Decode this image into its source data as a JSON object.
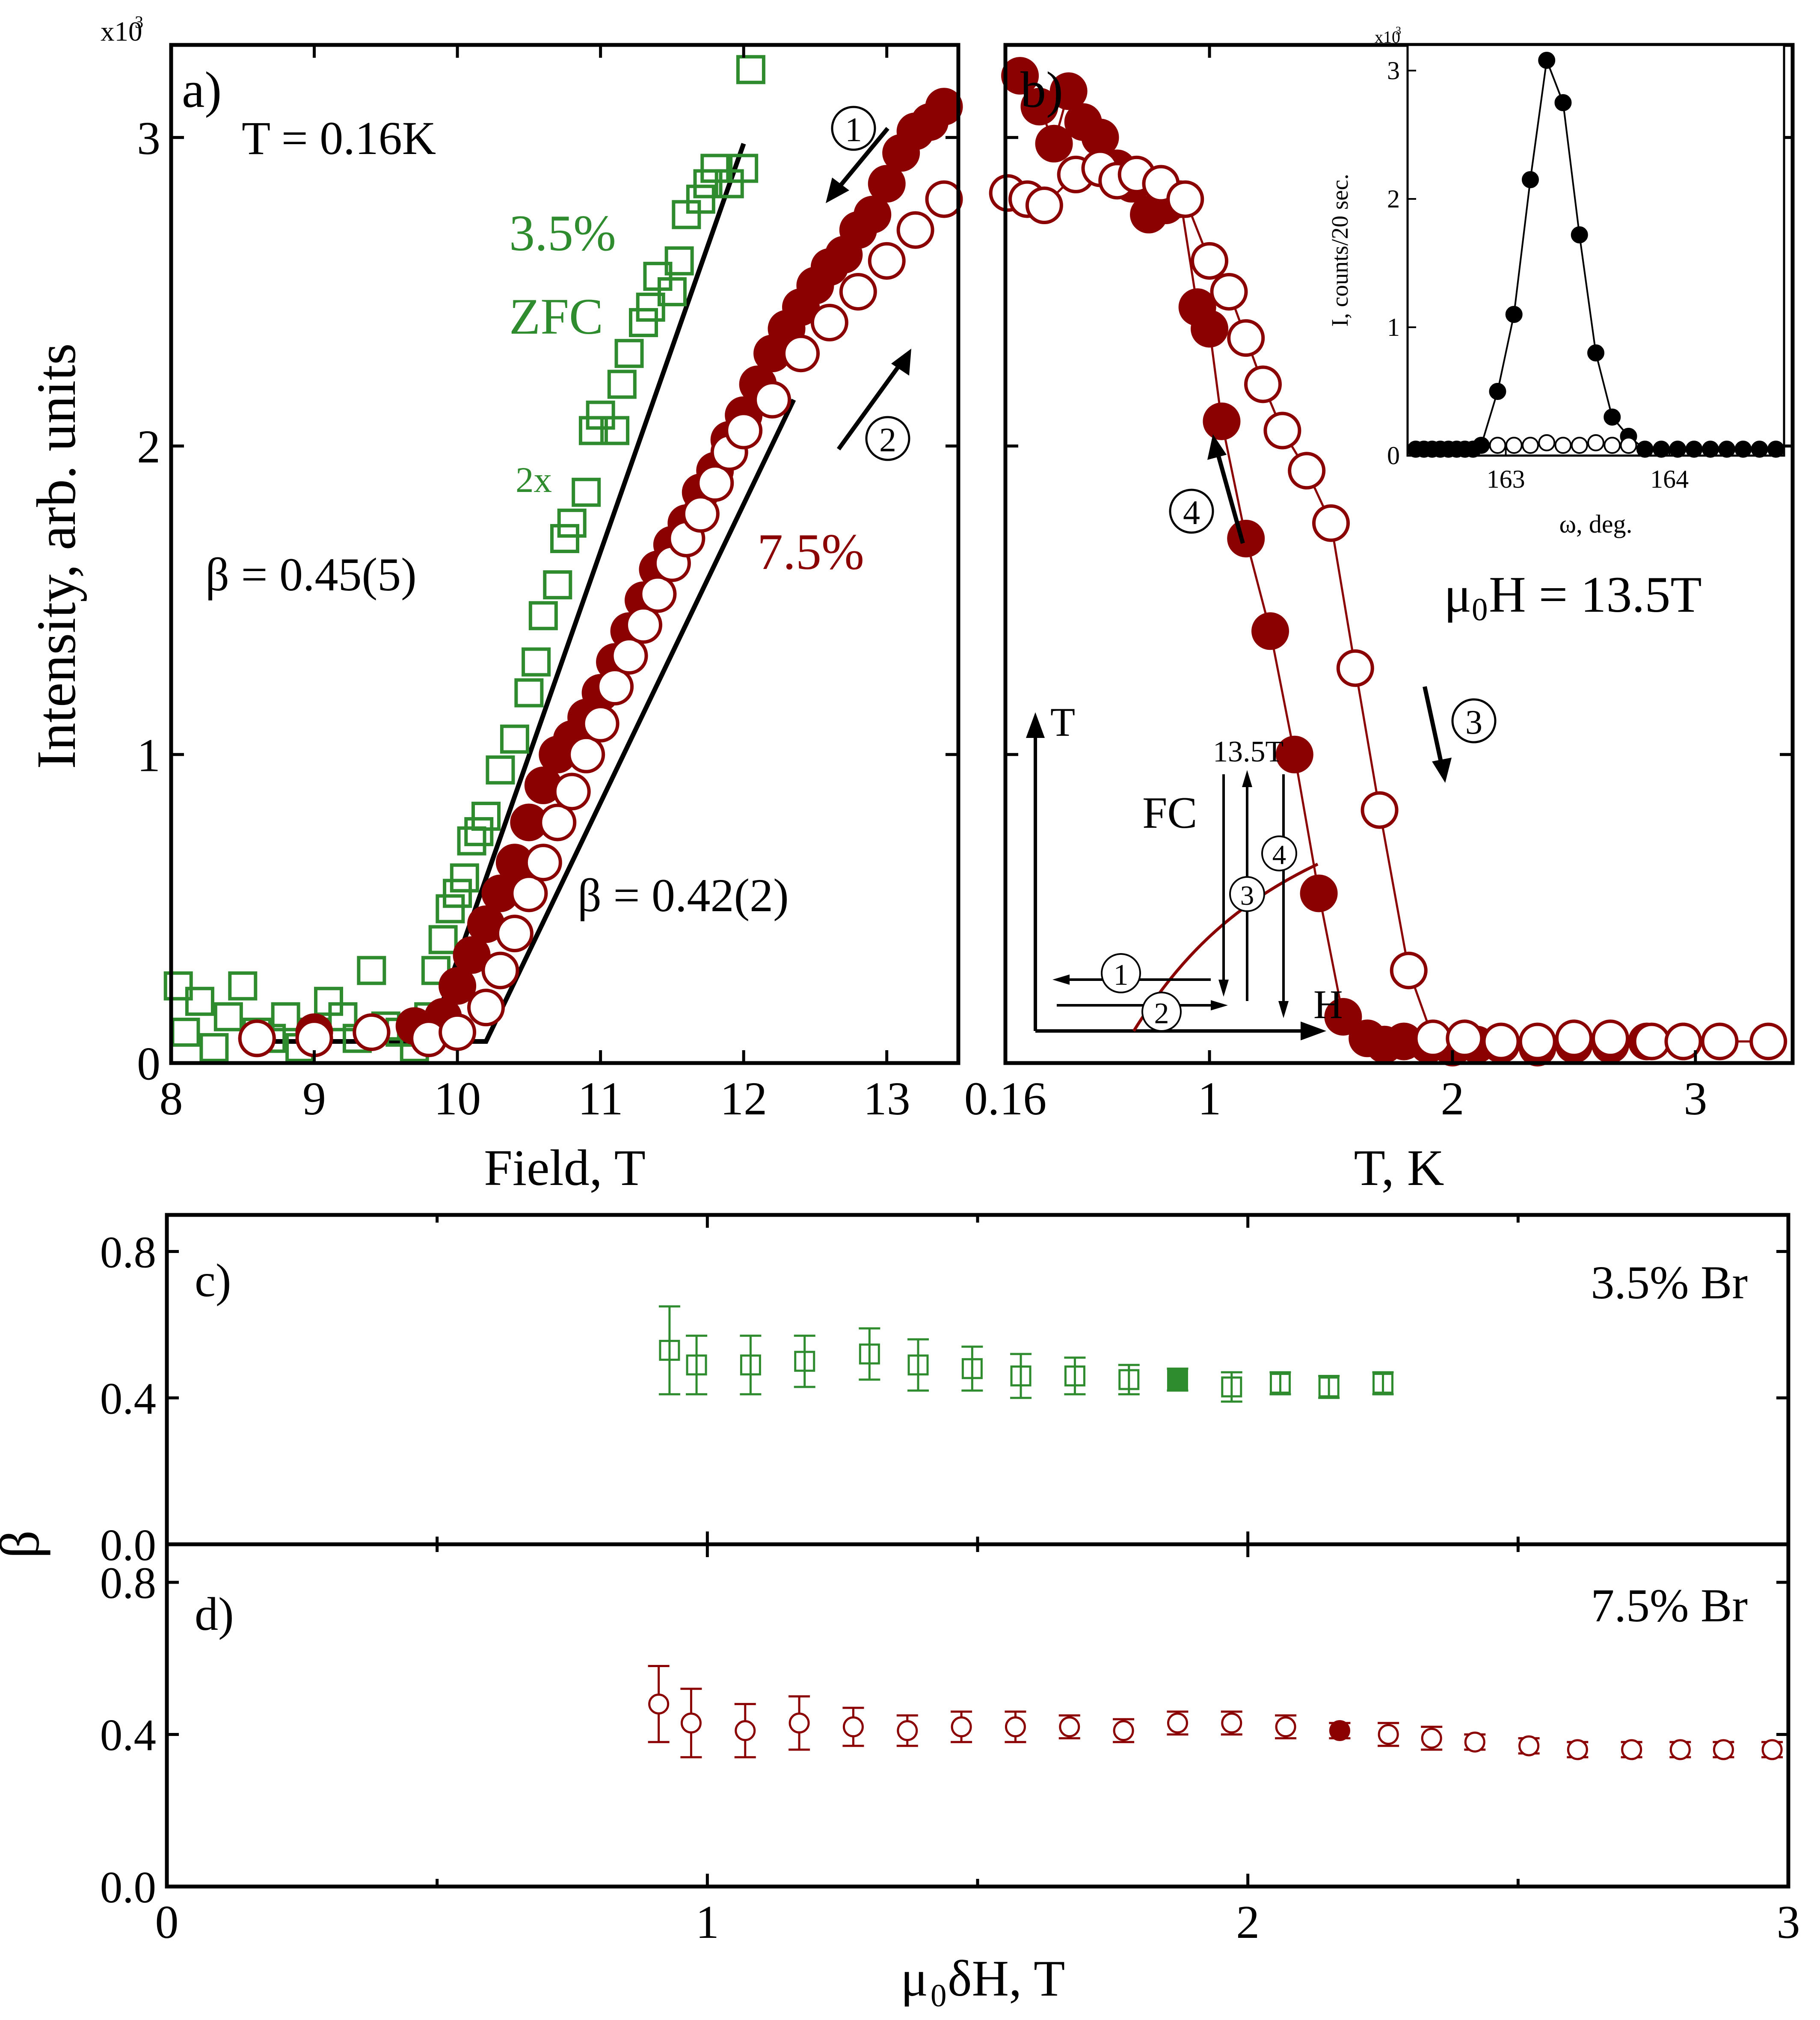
{
  "colors": {
    "green": "#2e8b2e",
    "red": "#8b0000",
    "black": "#000000"
  },
  "chart_data": [
    {
      "panel": "a",
      "type": "scatter",
      "panel_label": "a)",
      "xlabel": "Field, T",
      "ylabel": "Intensity, arb. units",
      "y_multiplier": "x10",
      "y_multiplier_exp": "3",
      "xlim": [
        8,
        13.5
      ],
      "ylim": [
        0,
        3.3
      ],
      "xticks": [
        "8",
        "9",
        "10",
        "11",
        "12",
        "13"
      ],
      "yticks": [
        "0",
        "1",
        "2",
        "3"
      ],
      "annotations": {
        "temperature": "T = 0.16K",
        "green_conc": "3.5%",
        "green_zfc": "ZFC",
        "scale_note": "2x",
        "beta_green": "β = 0.45(5)",
        "red_conc": "7.5%",
        "beta_red": "β = 0.42(2)",
        "arrow_down": "1",
        "arrow_up": "2"
      },
      "series": [
        {
          "name": "3.5% ZFC (2x)",
          "marker": "open-square",
          "color": "green",
          "x": [
            8.05,
            8.1,
            8.2,
            8.3,
            8.4,
            8.5,
            8.6,
            8.7,
            8.8,
            8.9,
            9.0,
            9.1,
            9.2,
            9.3,
            9.4,
            9.5,
            9.6,
            9.7,
            9.8,
            9.85,
            9.9,
            9.95,
            10.0,
            10.05,
            10.1,
            10.15,
            10.2,
            10.3,
            10.4,
            10.5,
            10.55,
            10.6,
            10.7,
            10.75,
            10.8,
            10.9,
            10.95,
            11.0,
            11.1,
            11.15,
            11.2,
            11.3,
            11.35,
            11.4,
            11.5,
            11.55,
            11.6,
            11.7,
            11.75,
            11.8,
            11.9,
            12.0,
            12.05
          ],
          "y": [
            0.25,
            0.1,
            0.2,
            0.05,
            0.15,
            0.25,
            0.1,
            0.08,
            0.15,
            0.05,
            0.1,
            0.2,
            0.15,
            0.08,
            0.3,
            0.12,
            0.1,
            0.05,
            0.15,
            0.3,
            0.4,
            0.5,
            0.55,
            0.6,
            0.72,
            0.75,
            0.8,
            0.95,
            1.05,
            1.2,
            1.3,
            1.45,
            1.55,
            1.7,
            1.75,
            1.85,
            2.05,
            2.1,
            2.05,
            2.2,
            2.3,
            2.4,
            2.45,
            2.55,
            2.5,
            2.6,
            2.75,
            2.8,
            2.85,
            2.9,
            2.85,
            2.9,
            3.22
          ]
        },
        {
          "name": "7.5% filled",
          "marker": "filled-circle",
          "color": "red",
          "x": [
            8.6,
            9.0,
            9.4,
            9.7,
            9.9,
            10.0,
            10.1,
            10.2,
            10.3,
            10.4,
            10.5,
            10.6,
            10.7,
            10.8,
            10.9,
            11.0,
            11.1,
            11.2,
            11.3,
            11.4,
            11.5,
            11.6,
            11.7,
            11.8,
            11.9,
            12.0,
            12.1,
            12.2,
            12.3,
            12.4,
            12.5,
            12.6,
            12.7,
            12.8,
            12.9,
            13.0,
            13.1,
            13.2,
            13.3,
            13.4
          ],
          "y": [
            0.08,
            0.1,
            0.1,
            0.12,
            0.15,
            0.25,
            0.35,
            0.45,
            0.55,
            0.65,
            0.78,
            0.9,
            1.0,
            1.05,
            1.12,
            1.2,
            1.3,
            1.4,
            1.5,
            1.6,
            1.68,
            1.75,
            1.85,
            1.92,
            2.02,
            2.1,
            2.2,
            2.3,
            2.38,
            2.45,
            2.52,
            2.58,
            2.62,
            2.7,
            2.75,
            2.85,
            2.95,
            3.02,
            3.05,
            3.1
          ]
        },
        {
          "name": "7.5% open",
          "marker": "open-circle",
          "color": "red",
          "x": [
            8.6,
            9.0,
            9.4,
            9.8,
            10.0,
            10.2,
            10.3,
            10.4,
            10.5,
            10.6,
            10.7,
            10.8,
            10.9,
            11.0,
            11.1,
            11.2,
            11.3,
            11.4,
            11.5,
            11.6,
            11.7,
            11.8,
            11.9,
            12.0,
            12.2,
            12.4,
            12.6,
            12.8,
            13.0,
            13.2,
            13.4
          ],
          "y": [
            0.08,
            0.08,
            0.1,
            0.08,
            0.1,
            0.18,
            0.3,
            0.42,
            0.55,
            0.65,
            0.78,
            0.88,
            1.0,
            1.1,
            1.22,
            1.32,
            1.42,
            1.52,
            1.62,
            1.7,
            1.78,
            1.88,
            1.98,
            2.05,
            2.15,
            2.3,
            2.4,
            2.5,
            2.6,
            2.7,
            2.8
          ]
        }
      ],
      "fits": [
        {
          "name": "fit 3.5%",
          "x": [
            8.5,
            9.8,
            12.0
          ],
          "y": [
            0.07,
            0.07,
            2.98
          ]
        },
        {
          "name": "fit 7.5%",
          "x": [
            8.5,
            10.2,
            12.35
          ],
          "y": [
            0.07,
            0.07,
            2.15
          ]
        }
      ]
    },
    {
      "panel": "b",
      "type": "scatter",
      "panel_label": "b)",
      "xlabel": "T, K",
      "xlim": [
        0.16,
        3.4
      ],
      "ylim": [
        0,
        3.3
      ],
      "xticks": [
        "0.16",
        "1",
        "2",
        "3"
      ],
      "annotations": {
        "field": "μ",
        "field_sub": "0",
        "field_rest": "H = 13.5T",
        "arrow_3": "3",
        "arrow_4": "4"
      },
      "series": [
        {
          "name": "13.5T filled",
          "marker": "filled-circle",
          "color": "red",
          "x": [
            0.22,
            0.3,
            0.36,
            0.42,
            0.48,
            0.55,
            0.62,
            0.68,
            0.75,
            0.82,
            0.88,
            0.95,
            1.0,
            1.05,
            1.15,
            1.25,
            1.35,
            1.45,
            1.55,
            1.65,
            1.72,
            1.8,
            1.9,
            2.0,
            2.1,
            2.2,
            2.35,
            2.5,
            2.65,
            2.8,
            2.95
          ],
          "y": [
            3.2,
            3.1,
            2.98,
            3.15,
            3.05,
            3.0,
            2.9,
            2.85,
            2.75,
            2.78,
            2.8,
            2.45,
            2.38,
            2.08,
            1.7,
            1.4,
            1.0,
            0.55,
            0.15,
            0.08,
            0.06,
            0.07,
            0.06,
            0.05,
            0.06,
            0.06,
            0.05,
            0.06,
            0.06,
            0.07,
            0.07
          ]
        },
        {
          "name": "13.5T open",
          "marker": "open-circle",
          "color": "red",
          "x": [
            0.17,
            0.25,
            0.32,
            0.45,
            0.55,
            0.62,
            0.7,
            0.8,
            0.9,
            1.0,
            1.08,
            1.15,
            1.22,
            1.3,
            1.4,
            1.5,
            1.6,
            1.7,
            1.82,
            1.92,
            2.05,
            2.2,
            2.35,
            2.5,
            2.65,
            2.82,
            2.95,
            3.1,
            3.3
          ],
          "y": [
            2.82,
            2.8,
            2.78,
            2.88,
            2.9,
            2.86,
            2.88,
            2.85,
            2.8,
            2.6,
            2.5,
            2.35,
            2.2,
            2.05,
            1.92,
            1.75,
            1.28,
            0.82,
            0.3,
            0.08,
            0.08,
            0.07,
            0.07,
            0.08,
            0.08,
            0.07,
            0.07,
            0.07,
            0.07
          ]
        }
      ],
      "schematic": {
        "t_axis": "T",
        "h_axis": "H",
        "field_value": "13.5T",
        "fc": "FC",
        "steps": [
          "1",
          "2",
          "3",
          "4"
        ]
      },
      "inset": {
        "type": "scatter",
        "xlabel": "ω, deg.",
        "ylabel": "I, counts/20 sec.",
        "y_multiplier": "x10",
        "y_multiplier_exp": "3",
        "xlim": [
          162.4,
          164.7
        ],
        "ylim": [
          0,
          3.2
        ],
        "xticks": [
          "163",
          "164"
        ],
        "yticks": [
          "0",
          "1",
          "2",
          "3"
        ],
        "series": [
          {
            "name": "filled",
            "marker": "filled-circle",
            "x": [
              162.45,
              162.55,
              162.65,
              162.75,
              162.85,
              162.95,
              163.05,
              163.15,
              163.25,
              163.35,
              163.45,
              163.55,
              163.65,
              163.75,
              163.85,
              163.95,
              164.05,
              164.15,
              164.25,
              164.35,
              164.45,
              164.55,
              164.65,
              162.5,
              162.6,
              162.7,
              162.8
            ],
            "y": [
              0.05,
              0.05,
              0.05,
              0.05,
              0.08,
              0.5,
              1.1,
              2.15,
              3.08,
              2.75,
              1.72,
              0.8,
              0.3,
              0.15,
              0.05,
              0.05,
              0.05,
              0.05,
              0.05,
              0.05,
              0.05,
              0.05,
              0.05,
              0.05,
              0.05,
              0.05,
              0.05
            ]
          },
          {
            "name": "open",
            "marker": "open-circle",
            "x": [
              162.95,
              163.05,
              163.15,
              163.25,
              163.35,
              163.45,
              163.55,
              163.65,
              163.75
            ],
            "y": [
              0.08,
              0.08,
              0.08,
              0.1,
              0.08,
              0.08,
              0.1,
              0.08,
              0.08
            ]
          }
        ]
      }
    },
    {
      "panel": "c",
      "type": "scatter",
      "panel_label": "c)",
      "label": "3.5% Br",
      "ylabel": "β",
      "xlim": [
        0,
        3
      ],
      "ylim": [
        0,
        0.9
      ],
      "yticks": [
        "0.0",
        "0.4",
        "0.8"
      ],
      "series": [
        {
          "name": "3.5% Br",
          "marker": "open-square",
          "color": "green",
          "x": [
            0.93,
            0.98,
            1.08,
            1.18,
            1.3,
            1.39,
            1.49,
            1.58,
            1.68,
            1.78,
            1.97,
            2.06,
            2.15,
            2.25
          ],
          "y": [
            0.53,
            0.49,
            0.49,
            0.5,
            0.52,
            0.49,
            0.48,
            0.46,
            0.46,
            0.45,
            0.43,
            0.44,
            0.43,
            0.44
          ],
          "err": [
            0.12,
            0.08,
            0.08,
            0.07,
            0.07,
            0.07,
            0.06,
            0.06,
            0.05,
            0.04,
            0.04,
            0.03,
            0.03,
            0.03
          ]
        },
        {
          "name": "3.5% Br highlighted",
          "marker": "filled-square",
          "color": "green",
          "x": [
            1.87
          ],
          "y": [
            0.45
          ],
          "err": [
            0.03
          ]
        }
      ]
    },
    {
      "panel": "d",
      "type": "scatter",
      "panel_label": "d)",
      "label": "7.5% Br",
      "xlabel": "μ",
      "xlabel_sub": "0",
      "xlabel_rest": "δH, T",
      "xlim": [
        0,
        3
      ],
      "ylim": [
        0,
        0.9
      ],
      "xticks": [
        "0",
        "1",
        "2",
        "3"
      ],
      "yticks": [
        "0.0",
        "0.4",
        "0.8"
      ],
      "series": [
        {
          "name": "7.5% Br",
          "marker": "open-circle",
          "color": "red",
          "x": [
            0.91,
            0.97,
            1.07,
            1.17,
            1.27,
            1.37,
            1.47,
            1.57,
            1.67,
            1.77,
            1.87,
            1.97,
            2.07,
            2.26,
            2.34,
            2.42,
            2.52,
            2.61,
            2.71,
            2.8,
            2.88,
            2.97
          ],
          "y": [
            0.48,
            0.43,
            0.41,
            0.43,
            0.42,
            0.41,
            0.42,
            0.42,
            0.42,
            0.41,
            0.43,
            0.43,
            0.42,
            0.4,
            0.39,
            0.38,
            0.37,
            0.36,
            0.36,
            0.36,
            0.36,
            0.36
          ],
          "err": [
            0.1,
            0.09,
            0.07,
            0.07,
            0.05,
            0.04,
            0.04,
            0.04,
            0.03,
            0.03,
            0.03,
            0.03,
            0.03,
            0.03,
            0.03,
            0.02,
            0.02,
            0.02,
            0.02,
            0.02,
            0.02,
            0.02
          ]
        },
        {
          "name": "7.5% Br highlighted",
          "marker": "filled-circle",
          "color": "red",
          "x": [
            2.17
          ],
          "y": [
            0.41
          ],
          "err": [
            0.02
          ]
        }
      ]
    }
  ]
}
